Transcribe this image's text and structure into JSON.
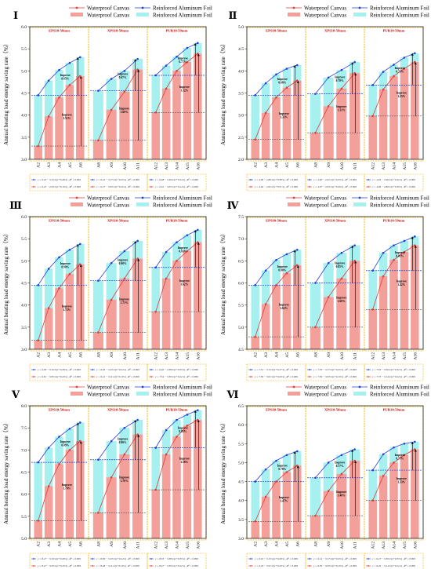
{
  "legend": {
    "canvas_line": "Waterproof Canvas",
    "canvas_bar": "Waterproof Canvas",
    "foil_line": "Reinforced Aluminum Foil",
    "foil_bar": "Reinforced Aluminum Foil"
  },
  "colors": {
    "canvas": "#e53935",
    "canvas_bar": "#f4a09a",
    "foil": "#1f3fd9",
    "foil_bar": "#a6f0ef",
    "group_box": "#e8b400",
    "group_label": "#c00000"
  },
  "chart_data": [
    {
      "id": "I",
      "type": "bar",
      "title": "Ⅰ",
      "ylabel": "Annual heating load energy saving rate（%）",
      "ylim": [
        3.0,
        6.0
      ],
      "yticks": [
        3.0,
        3.5,
        4.0,
        4.5,
        5.0,
        5.5,
        6.0
      ],
      "groups": [
        {
          "label": "EPS10-50mm",
          "categories": [
            "A2",
            "A3",
            "A4",
            "A5",
            "A6"
          ],
          "foil": [
            4.45,
            4.78,
            5.02,
            5.18,
            5.31
          ],
          "canvas": [
            3.3,
            3.97,
            4.4,
            4.68,
            4.88
          ],
          "improve_foil": "Improve 0.85%",
          "improve_canvas": "Improve 1.51%"
        },
        {
          "label": "XPS10-50mm",
          "categories": [
            "A8",
            "A9",
            "A10",
            "A11"
          ],
          "foil": [
            4.55,
            4.82,
            5.0,
            5.27
          ],
          "canvas": [
            3.43,
            4.12,
            4.53,
            5.03
          ],
          "improve_foil": "Improve 0.67%",
          "improve_canvas": "Improve 1.60%"
        },
        {
          "label": "PUR10-50mm",
          "categories": [
            "A12",
            "A13",
            "A14",
            "A15",
            "A16"
          ],
          "foil": [
            4.9,
            5.12,
            5.32,
            5.52,
            5.63
          ],
          "canvas": [
            4.06,
            4.6,
            5.0,
            5.2,
            5.39
          ],
          "improve_foil": "Improve 0.77%",
          "improve_canvas": "Improve 1.32%"
        }
      ],
      "equations": [
        [
          "y = 6.23 − 3.15·x/(1+0.28·x) , R² = 0.999",
          "y = 6.24 − 3.17·x/(1+0.25·x) , R² = 0.999",
          "y = 6.48 − 3.46·x/(1+0.34·x) , R² = 0.999"
        ],
        [
          "y = 6.25 − 2.93·x/(1+0.19·x) , R² = 0.999",
          "y = 6.27 − 3.03·x/(1+0.20·x) , R² = 0.999",
          "y = 6.52 − 3.05·x/(1+0.24·x) , R² = 0.999"
        ]
      ]
    },
    {
      "id": "II",
      "type": "bar",
      "title": "Ⅱ",
      "ylabel": "Annual heating load energy saving rate（%）",
      "ylim": [
        2.0,
        5.0
      ],
      "yticks": [
        2.0,
        2.5,
        3.0,
        3.5,
        4.0,
        4.5,
        5.0
      ],
      "groups": [
        {
          "label": "EPS10-50mm",
          "categories": [
            "A2",
            "A3",
            "A4",
            "A5",
            "A6"
          ],
          "foil": [
            3.45,
            3.72,
            3.92,
            4.05,
            4.13
          ],
          "canvas": [
            2.45,
            3.05,
            3.4,
            3.62,
            3.78
          ],
          "improve_foil": "Improve 0.68%",
          "improve_canvas": "Improve 1.33%"
        },
        {
          "label": "XPS10-50mm",
          "categories": [
            "A8",
            "A9",
            "A10",
            "A11"
          ],
          "foil": [
            3.48,
            3.85,
            4.02,
            4.2
          ],
          "canvas": [
            2.6,
            3.2,
            3.6,
            3.95
          ],
          "improve_foil": "Improve 0.70%",
          "improve_canvas": "Improve 1.31%"
        },
        {
          "label": "PUR10-50mm",
          "categories": [
            "A12",
            "A13",
            "A14",
            "A15",
            "A16"
          ],
          "foil": [
            3.68,
            3.98,
            4.14,
            4.3,
            4.4
          ],
          "canvas": [
            2.98,
            3.58,
            3.88,
            4.05,
            4.2
          ],
          "improve_foil": "Improve 0.71%",
          "improve_canvas": "Improve 1.23%"
        }
      ],
      "equations": [
        [
          "y = 4.90 − 2.89·x/(1+0.38·x) , R² = 0.999",
          "y = 4.90 − 2.91·x/(1+0.33·x) , R² = 0.999",
          "y = 4.94 − 2.96·x/(1+0.42·x) , R² = 0.999"
        ],
        [
          "y = 4.92 − 2.62·x/(1+0.31·x) , R² = 0.999",
          "y = 4.97 − 2.65·x/(1+0.26·x) , R² = 0.999",
          "y = 4.96 − 2.80·x/(1+0.30·x) , R² = 0.999"
        ]
      ]
    },
    {
      "id": "III",
      "type": "bar",
      "title": "Ⅲ",
      "ylabel": "Annual heating load energy saving rate（%）",
      "ylim": [
        3.0,
        6.0
      ],
      "yticks": [
        3.0,
        3.5,
        4.0,
        4.5,
        5.0,
        5.5,
        6.0
      ],
      "groups": [
        {
          "label": "EPS10-50mm",
          "categories": [
            "A2",
            "A3",
            "A4",
            "A5",
            "A6"
          ],
          "foil": [
            4.45,
            4.82,
            5.08,
            5.25,
            5.38
          ],
          "canvas": [
            3.2,
            3.93,
            4.38,
            4.7,
            4.92
          ],
          "improve_foil": "Improve 0.90%",
          "improve_canvas": "Improve 1.72%"
        },
        {
          "label": "XPS10-50mm",
          "categories": [
            "A8",
            "A9",
            "A10",
            "A11"
          ],
          "foil": [
            4.55,
            4.95,
            5.22,
            5.45
          ],
          "canvas": [
            3.38,
            4.12,
            4.6,
            5.05
          ],
          "improve_foil": "Improve 0.90%",
          "improve_canvas": "Improve 1.71%"
        },
        {
          "label": "PUR10-50mm",
          "categories": [
            "A12",
            "A13",
            "A14",
            "A15",
            "A16"
          ],
          "foil": [
            4.85,
            5.2,
            5.42,
            5.58,
            5.7
          ],
          "canvas": [
            3.85,
            4.6,
            5.0,
            5.22,
            5.42
          ],
          "improve_foil": "Improve 0.83%",
          "improve_canvas": "Improve 1.62%"
        }
      ],
      "equations": [
        [
          "y = 6.36 − 3.19·x/(1+0.28·x) , R² = 0.999",
          "y = 6.36 − 3.23·x/(1+0.24·x) , R² = 0.999",
          "y = 6.46 − 3.38·x/(1+0.33·x) , R² = 0.999"
        ],
        [
          "y = 6.61 − 3.05·x/(1+0.20·x) , R² = 0.999",
          "y = 6.41 − 3.11·x/(1+0.19·x) , R² = 0.999",
          "y = 7.54 − 3.30·x/(1+0.22·x) , R² = 0.999"
        ]
      ]
    },
    {
      "id": "IV",
      "type": "bar",
      "title": "Ⅳ",
      "ylabel": "Annual heating load energy saving rate（%）",
      "ylim": [
        4.5,
        7.5
      ],
      "yticks": [
        4.5,
        5.0,
        5.5,
        6.0,
        6.5,
        7.0,
        7.5
      ],
      "groups": [
        {
          "label": "EPS10-50mm",
          "categories": [
            "A2",
            "A3",
            "A4",
            "A5",
            "A6"
          ],
          "foil": [
            5.95,
            6.28,
            6.52,
            6.65,
            6.75
          ],
          "canvas": [
            4.78,
            5.52,
            5.95,
            6.22,
            6.4
          ],
          "improve_foil": "Improve 0.80%",
          "improve_canvas": "Improve 1.62%"
        },
        {
          "label": "XPS10-50mm",
          "categories": [
            "A8",
            "A9",
            "A10",
            "A11"
          ],
          "foil": [
            6.0,
            6.45,
            6.68,
            6.85
          ],
          "canvas": [
            5.0,
            5.68,
            6.1,
            6.5
          ],
          "improve_foil": "Improve 0.85%",
          "improve_canvas": "Improve 1.60%"
        },
        {
          "label": "PUR10-50mm",
          "categories": [
            "A12",
            "A13",
            "A14",
            "A15",
            "A16"
          ],
          "foil": [
            6.28,
            6.68,
            6.85,
            6.95,
            7.05
          ],
          "canvas": [
            5.4,
            6.15,
            6.52,
            6.7,
            6.85
          ],
          "improve_foil": "Improve 0.81%",
          "improve_canvas": "Improve 1.42%"
        }
      ],
      "equations": [
        [
          "y = 7.51 − 3.15·x/(1+0.27·x) , R² = 0.999",
          "y = 7.55 − 3.17·x/(1+0.25·x) , R² = 0.999",
          "y = 7.59 − 3.36·x/(1+0.32·x) , R² = 0.999"
        ],
        [
          "y = 7.56 − 3.01·x/(1+0.20·x) , R² = 0.999",
          "y = 7.59 − 3.03·x/(1+0.19·x) , R² = 0.999",
          "y = 7.75 − 3.24·x/(1+0.22·x) , R² = 0.999"
        ]
      ]
    },
    {
      "id": "V",
      "type": "bar",
      "title": "Ⅴ",
      "ylabel": "Annual heating load energy saving rate（%）",
      "ylim": [
        5.0,
        8.0
      ],
      "yticks": [
        5.0,
        5.5,
        6.0,
        6.5,
        7.0,
        7.5,
        8.0
      ],
      "groups": [
        {
          "label": "EPS10-50mm",
          "categories": [
            "A2",
            "A3",
            "A4",
            "A5",
            "A6"
          ],
          "foil": [
            6.72,
            7.05,
            7.3,
            7.48,
            7.62
          ],
          "canvas": [
            5.4,
            6.18,
            6.68,
            7.0,
            7.2
          ],
          "improve_foil": "Improve 0.89%",
          "improve_canvas": "Improve 1.79%"
        },
        {
          "label": "XPS10-50mm",
          "categories": [
            "A8",
            "A9",
            "A10",
            "A11"
          ],
          "foil": [
            6.78,
            7.2,
            7.5,
            7.68
          ],
          "canvas": [
            5.58,
            6.38,
            6.9,
            7.35
          ],
          "improve_foil": "Improve 0.90%",
          "improve_canvas": "Improve 1.76%"
        },
        {
          "label": "PUR10-50mm",
          "categories": [
            "A12",
            "A13",
            "A14",
            "A15",
            "A16"
          ],
          "foil": [
            7.05,
            7.45,
            7.68,
            7.8,
            7.9
          ],
          "canvas": [
            6.1,
            6.9,
            7.3,
            7.55,
            7.68
          ],
          "improve_foil": "Improve 0.85%",
          "improve_canvas": "Improve 1.58%"
        }
      ],
      "equations": [
        [
          "y = 8.27 − 3.19·x/(1+0.28·x) , R² = 0.999",
          "y = 8.09 − 3.23·x/(1+0.24·x) , R² = 0.999",
          "y = 8.33 − 3.38·x/(1+0.33·x) , R² = 0.999"
        ],
        [
          "y = 8.47 − 3.03·x/(1+0.20·x) , R² = 0.999",
          "y = 8.48 − 3.11·x/(1+0.19·x) , R² = 0.999",
          "y = 8.47 − 3.30·x/(1+0.22·x) , R² = 0.999"
        ]
      ]
    },
    {
      "id": "VI",
      "type": "bar",
      "title": "Ⅵ",
      "ylabel": "Annual heating load energy saving rate（%）",
      "ylim": [
        3.0,
        6.5
      ],
      "yticks": [
        3.0,
        3.5,
        4.0,
        4.5,
        5.0,
        5.5,
        6.0,
        6.5
      ],
      "groups": [
        {
          "label": "EPS10-50mm",
          "categories": [
            "A2",
            "A3",
            "A4",
            "A5",
            "A6"
          ],
          "foil": [
            4.5,
            4.82,
            5.05,
            5.2,
            5.3
          ],
          "canvas": [
            3.45,
            4.1,
            4.5,
            4.75,
            4.92
          ],
          "improve_foil": "Improve 0.78%",
          "improve_canvas": "Improve 1.47%"
        },
        {
          "label": "XPS10-50mm",
          "categories": [
            "A8",
            "A9",
            "A10",
            "A11"
          ],
          "foil": [
            4.6,
            5.0,
            5.2,
            5.35
          ],
          "canvas": [
            3.6,
            4.25,
            4.7,
            5.05
          ],
          "improve_foil": "Improve 0.77%",
          "improve_canvas": "Improve 1.40%"
        },
        {
          "label": "PUR10-50mm",
          "categories": [
            "A12",
            "A13",
            "A14",
            "A15",
            "A16"
          ],
          "foil": [
            4.8,
            5.22,
            5.4,
            5.5,
            5.55
          ],
          "canvas": [
            4.0,
            4.65,
            5.0,
            5.2,
            5.35
          ],
          "improve_foil": "Improve 0.77%",
          "improve_canvas": "Improve 1.33%"
        }
      ],
      "equations": [
        [
          "y = 6.10 − 3.15·x/(1+0.28·x) , R² = 0.999",
          "y = 6.14 − 3.17·x/(1+0.25·x) , R² = 0.999",
          "y = 6.27 − 3.36·x/(1+0.33·x) , R² = 0.999"
        ],
        [
          "y = 6.29 − 3.01·x/(1+0.20·x) , R² = 0.999",
          "y = 6.36 − 3.03·x/(1+0.19·x) , R² = 0.999",
          "y = 6.29 − 3.24·x/(1+0.22·x) , R² = 0.999"
        ]
      ]
    }
  ]
}
